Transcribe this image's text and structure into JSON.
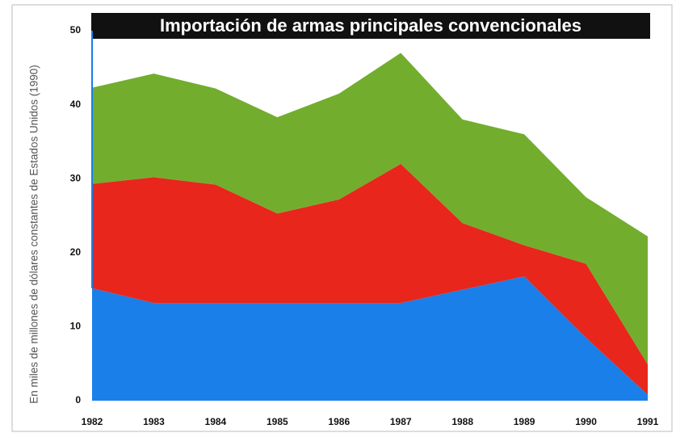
{
  "chart_data": {
    "type": "stacked_area",
    "title": "Importación de armas principales convencionales",
    "y_label": "En miles de millones de dólares constantes de Estados Unidos (1990)",
    "x": [
      1982,
      1983,
      1984,
      1985,
      1986,
      1987,
      1988,
      1989,
      1990,
      1991
    ],
    "series": [
      {
        "color": "#1a7fe8",
        "values": [
          15.2,
          13.2,
          13.2,
          13.2,
          13.2,
          13.2,
          15,
          16.8,
          8.5,
          0.8
        ]
      },
      {
        "color": "#e8261c",
        "values": [
          14.1,
          17,
          16,
          12.1,
          14,
          18.8,
          9,
          4.2,
          10,
          4.1
        ]
      },
      {
        "color": "#72ad2e",
        "values": [
          13,
          14,
          13,
          13,
          14.3,
          15,
          14,
          15,
          9,
          17.3
        ]
      }
    ],
    "xlim": [
      1982,
      1991
    ],
    "ylim": [
      0,
      50
    ],
    "yticks": [
      0,
      10,
      20,
      30,
      40,
      50
    ]
  }
}
